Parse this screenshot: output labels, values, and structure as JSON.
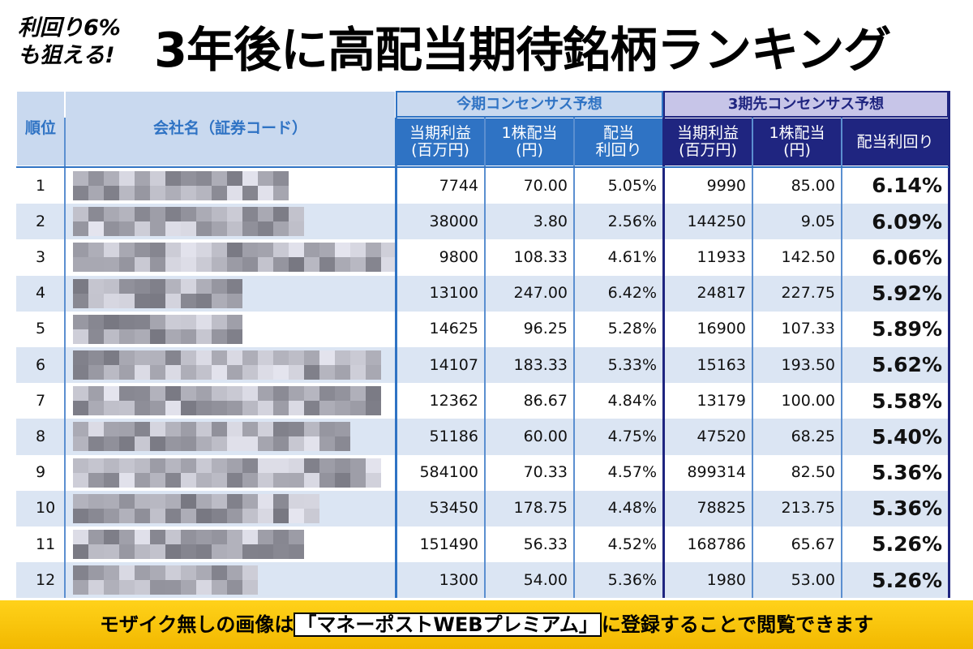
{
  "header": {
    "lead": [
      "利回り6%",
      "も狙える!"
    ],
    "title": "3年後に高配当期待銘柄ランキング"
  },
  "table": {
    "rank_header": "順位",
    "company_header": "会社名（証券コード）",
    "groups": [
      "今期コンセンサス予想",
      "3期先コンセンサス予想"
    ],
    "columns": [
      [
        "当期利益",
        "(百万円)"
      ],
      [
        "1株配当",
        "(円)"
      ],
      [
        "配当",
        "利回り"
      ],
      [
        "当期利益",
        "(百万円)"
      ],
      [
        "1株配当",
        "(円)"
      ],
      [
        "配当利回り"
      ]
    ],
    "rows": [
      [
        "1",
        "7744",
        "70.00",
        "5.05%",
        "9990",
        "85.00",
        "6.14%"
      ],
      [
        "2",
        "38000",
        "3.80",
        "2.56%",
        "144250",
        "9.05",
        "6.09%"
      ],
      [
        "3",
        "9800",
        "108.33",
        "4.61%",
        "11933",
        "142.50",
        "6.06%"
      ],
      [
        "4",
        "13100",
        "247.00",
        "6.42%",
        "24817",
        "227.75",
        "5.92%"
      ],
      [
        "5",
        "14625",
        "96.25",
        "5.28%",
        "16900",
        "107.33",
        "5.89%"
      ],
      [
        "6",
        "14107",
        "183.33",
        "5.33%",
        "15163",
        "193.50",
        "5.62%"
      ],
      [
        "7",
        "12362",
        "86.67",
        "4.84%",
        "13179",
        "100.00",
        "5.58%"
      ],
      [
        "8",
        "51186",
        "60.00",
        "4.75%",
        "47520",
        "68.25",
        "5.40%"
      ],
      [
        "9",
        "584100",
        "70.33",
        "4.57%",
        "899314",
        "82.50",
        "5.36%"
      ],
      [
        "10",
        "53450",
        "178.75",
        "4.48%",
        "78825",
        "213.75",
        "5.36%"
      ],
      [
        "11",
        "151490",
        "56.33",
        "4.52%",
        "168786",
        "65.67",
        "5.26%"
      ],
      [
        "12",
        "1300",
        "54.00",
        "5.36%",
        "1980",
        "53.00",
        "5.26%"
      ]
    ]
  },
  "footer": {
    "before": "モザイク無しの画像は",
    "highlight": "「マネーポストWEBプレミアム」",
    "after": "に登録することで閲覧できます"
  }
}
